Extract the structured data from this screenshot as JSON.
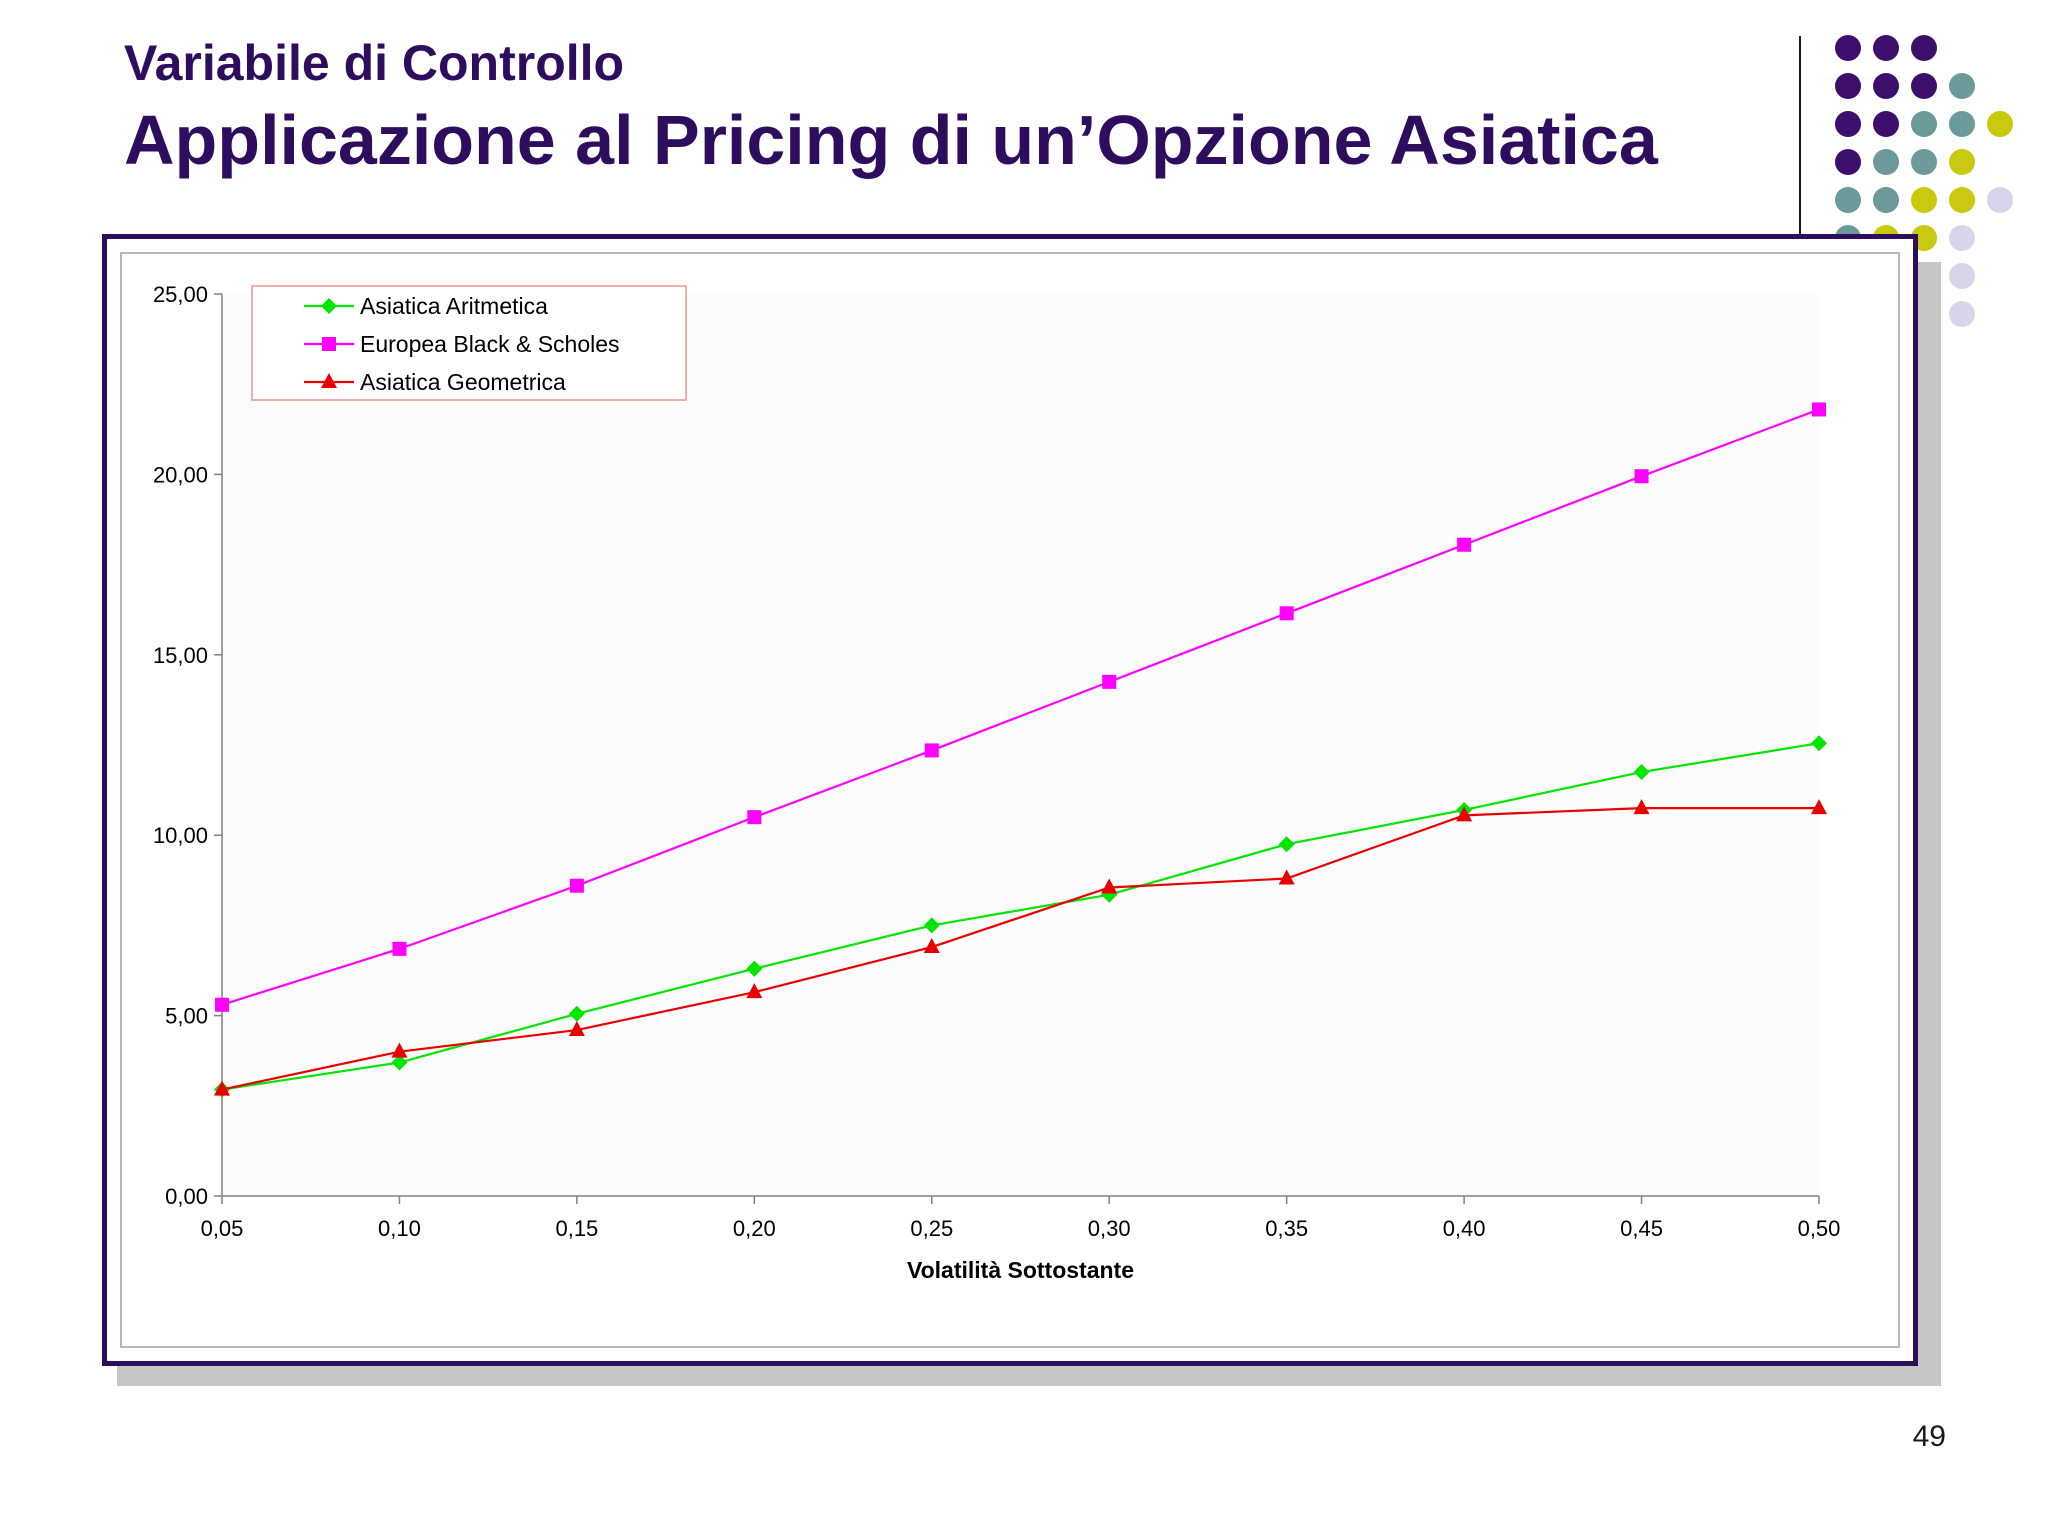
{
  "slide": {
    "subtitle": "Variabile di Controllo",
    "title": "Applicazione al Pricing di un’Opzione Asiatica",
    "page_number": "49"
  },
  "colors": {
    "title": "#2e0c5e",
    "frame": "#2e0c5e",
    "dot_purple": "#3b0f6b",
    "dot_teal": "#6c9a9a",
    "dot_yellow": "#c9c910",
    "dot_lavender": "#d8d4ea"
  },
  "decoration": {
    "dot_grid": [
      [
        "purple",
        "purple",
        "purple",
        "",
        ""
      ],
      [
        "purple",
        "purple",
        "purple",
        "teal",
        ""
      ],
      [
        "purple",
        "purple",
        "teal",
        "teal",
        "yellow"
      ],
      [
        "purple",
        "teal",
        "teal",
        "yellow",
        ""
      ],
      [
        "teal",
        "teal",
        "yellow",
        "yellow",
        "lavender"
      ],
      [
        "teal",
        "yellow",
        "yellow",
        "lavender",
        ""
      ],
      [
        "",
        "lavender",
        "lavender",
        "lavender",
        ""
      ],
      [
        "",
        "",
        "",
        "lavender",
        ""
      ]
    ]
  },
  "chart_data": {
    "type": "line",
    "title": "",
    "xlabel": "Volatilità Sottostante",
    "ylabel": "",
    "x": [
      0.05,
      0.1,
      0.15,
      0.2,
      0.25,
      0.3,
      0.35,
      0.4,
      0.45,
      0.5
    ],
    "x_tick_labels": [
      "0,05",
      "0,10",
      "0,15",
      "0,20",
      "0,25",
      "0,30",
      "0,35",
      "0,40",
      "0,45",
      "0,50"
    ],
    "y_tick_labels": [
      "0,00",
      "5,00",
      "10,00",
      "15,00",
      "20,00",
      "25,00"
    ],
    "y_ticks": [
      0,
      5,
      10,
      15,
      20,
      25
    ],
    "ylim": [
      0,
      25
    ],
    "xlim": [
      0.05,
      0.5
    ],
    "grid": false,
    "legend_position": "top-left",
    "series": [
      {
        "name": "Asiatica Aritmetica",
        "color": "#00e600",
        "marker": "diamond",
        "values": [
          2.95,
          3.7,
          5.05,
          6.3,
          7.5,
          8.35,
          9.75,
          10.7,
          11.75,
          12.55
        ]
      },
      {
        "name": "Europea Black & Scholes",
        "color": "#ff00ff",
        "marker": "square",
        "values": [
          5.3,
          6.85,
          8.6,
          10.5,
          12.35,
          14.25,
          16.15,
          18.05,
          19.95,
          21.8
        ]
      },
      {
        "name": "Asiatica Geometrica",
        "color": "#e80000",
        "marker": "triangle",
        "values": [
          2.95,
          4.0,
          4.6,
          5.65,
          6.9,
          8.55,
          8.8,
          10.55,
          10.75,
          10.75
        ]
      }
    ]
  }
}
